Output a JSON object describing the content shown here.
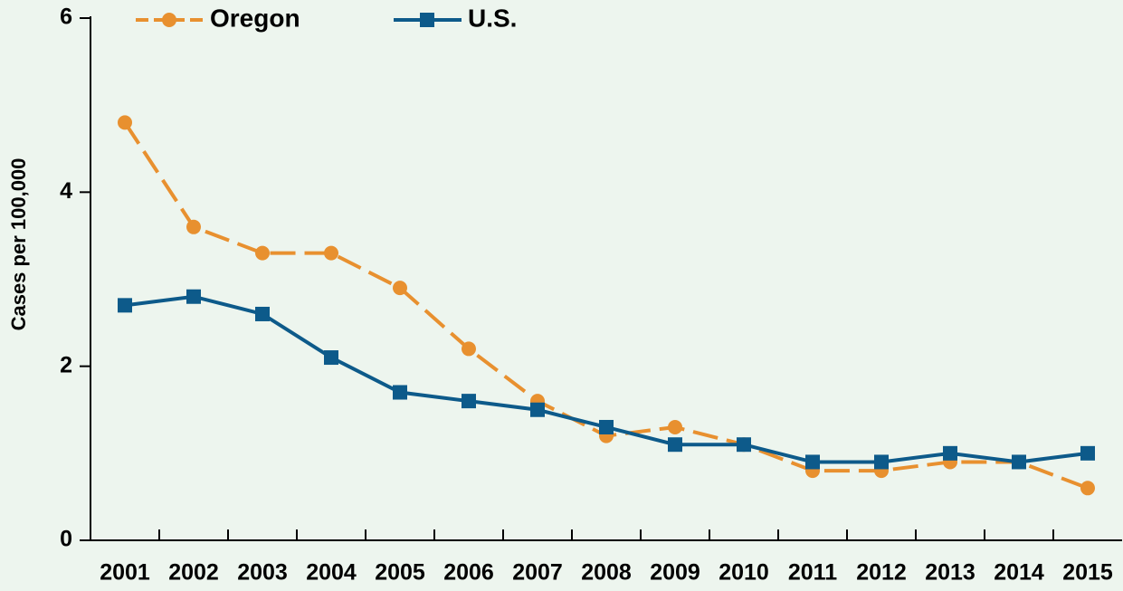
{
  "chart_data": {
    "type": "line",
    "ylabel": "Cases per 100,000",
    "categories": [
      "2001",
      "2002",
      "2003",
      "2004",
      "2005",
      "2006",
      "2007",
      "2008",
      "2009",
      "2010",
      "2011",
      "2012",
      "2013",
      "2014",
      "2015"
    ],
    "series": [
      {
        "name": "Oregon",
        "color": "#e8902f",
        "dashed": true,
        "marker": "circle",
        "values": [
          4.8,
          3.6,
          3.3,
          3.3,
          2.9,
          2.2,
          1.6,
          1.2,
          1.3,
          1.1,
          0.8,
          0.8,
          0.9,
          0.9,
          0.6
        ]
      },
      {
        "name": "U.S.",
        "color": "#0d5a8a",
        "dashed": false,
        "marker": "square",
        "values": [
          2.7,
          2.8,
          2.6,
          2.1,
          1.7,
          1.6,
          1.5,
          1.3,
          1.1,
          1.1,
          0.9,
          0.9,
          1.0,
          0.9,
          1.0
        ]
      }
    ],
    "ylim": [
      0,
      6
    ],
    "yticks": [
      0,
      2,
      4,
      6
    ],
    "grid": false,
    "legend": "top"
  }
}
